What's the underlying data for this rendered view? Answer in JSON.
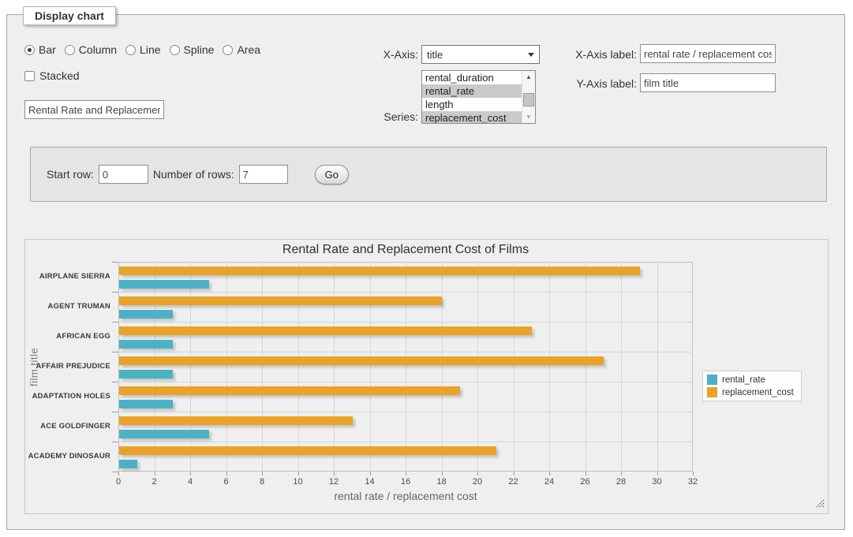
{
  "panel_title": "Display chart",
  "chart_type": {
    "options": [
      {
        "label": "Bar",
        "selected": true
      },
      {
        "label": "Column",
        "selected": false
      },
      {
        "label": "Line",
        "selected": false
      },
      {
        "label": "Spline",
        "selected": false
      },
      {
        "label": "Area",
        "selected": false
      }
    ]
  },
  "stacked": {
    "label": "Stacked",
    "checked": false
  },
  "chart_title_input": {
    "value": "Rental Rate and Replacement Cost of Films"
  },
  "x_axis_select": {
    "label": "X-Axis:",
    "value": "title"
  },
  "series_select": {
    "label": "Series:",
    "options": [
      {
        "label": "rental_duration",
        "selected": false
      },
      {
        "label": "rental_rate",
        "selected": true
      },
      {
        "label": "length",
        "selected": false
      },
      {
        "label": "replacement_cost",
        "selected": true
      }
    ]
  },
  "x_axis_label": {
    "label": "X-Axis label:",
    "value": "rental rate / replacement cost"
  },
  "y_axis_label": {
    "label": "Y-Axis label:",
    "value": "film title"
  },
  "row_controls": {
    "start_row_label": "Start row:",
    "start_row_value": "0",
    "rows_label": "Number of rows:",
    "rows_value": "7",
    "go_label": "Go"
  },
  "chart_data": {
    "type": "bar",
    "orientation": "horizontal",
    "title": "Rental Rate and Replacement Cost of Films",
    "xlabel": "rental rate / replacement cost",
    "ylabel": "film title",
    "categories": [
      "AIRPLANE SIERRA",
      "AGENT TRUMAN",
      "AFRICAN EGG",
      "AFFAIR PREJUDICE",
      "ADAPTATION HOLES",
      "ACE GOLDFINGER",
      "ACADEMY DINOSAUR"
    ],
    "series": [
      {
        "name": "rental_rate",
        "color": "#4bb2c5",
        "values": [
          4.99,
          2.99,
          2.99,
          2.99,
          2.99,
          4.99,
          0.99
        ]
      },
      {
        "name": "replacement_cost",
        "color": "#eaa228",
        "values": [
          28.99,
          17.99,
          22.99,
          26.99,
          18.99,
          12.99,
          20.99
        ]
      }
    ],
    "xlim": [
      0,
      32
    ],
    "xtick_step": 2,
    "grid": true,
    "legend_position": "right"
  }
}
